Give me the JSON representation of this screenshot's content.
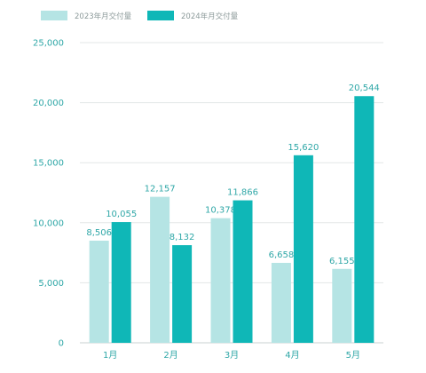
{
  "chart_data": {
    "type": "bar",
    "categories": [
      "1月",
      "2月",
      "3月",
      "4月",
      "5月"
    ],
    "series": [
      {
        "name": "2023年月交付量",
        "color": "#b5e4e4",
        "values": [
          8506,
          12157,
          10378,
          6658,
          6155
        ],
        "labels": [
          "8,506",
          "12,157",
          "10,378",
          "6,658",
          "6,155"
        ]
      },
      {
        "name": "2024年月交付量",
        "color": "#0fb7b7",
        "values": [
          10055,
          8132,
          11866,
          15620,
          20544
        ],
        "labels": [
          "10,055",
          "8,132",
          "11,866",
          "15,620",
          "20,544"
        ]
      }
    ],
    "ylim": [
      0,
      25000
    ],
    "yticks": [
      0,
      5000,
      10000,
      15000,
      20000,
      25000
    ],
    "ytick_labels": [
      "0",
      "5,000",
      "10,000",
      "15,000",
      "20,000",
      "25,000"
    ],
    "grid": true,
    "legend": "top-left",
    "colors": {
      "axis_text": "#2fa7a7",
      "grid": "#e3e7e7",
      "legend_text": "#8c9a9a"
    }
  }
}
